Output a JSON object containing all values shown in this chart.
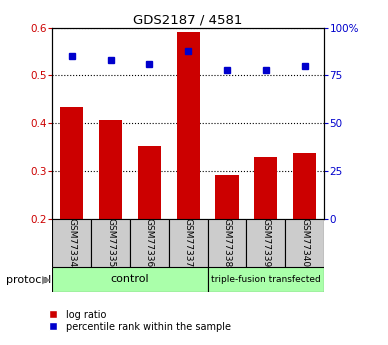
{
  "title": "GDS2187 / 4581",
  "samples": [
    "GSM77334",
    "GSM77335",
    "GSM77336",
    "GSM77337",
    "GSM77338",
    "GSM77339",
    "GSM77340"
  ],
  "log_ratio": [
    0.435,
    0.407,
    0.352,
    0.59,
    0.292,
    0.33,
    0.338
  ],
  "percentile_rank": [
    85,
    83,
    81,
    88,
    78,
    78,
    80
  ],
  "bar_color": "#cc0000",
  "dot_color": "#0000cc",
  "ylim_left": [
    0.2,
    0.6
  ],
  "ylim_right": [
    0,
    100
  ],
  "yticks_left": [
    0.2,
    0.3,
    0.4,
    0.5,
    0.6
  ],
  "yticks_right": [
    0,
    25,
    50,
    75,
    100
  ],
  "ytick_labels_right": [
    "0",
    "25",
    "50",
    "75",
    "100%"
  ],
  "control_samples": 4,
  "triple_fusion_samples": 3,
  "protocol_label": "protocol",
  "control_label": "control",
  "triple_label": "triple-fusion transfected",
  "legend_items": [
    {
      "label": "log ratio",
      "color": "#cc0000"
    },
    {
      "label": "percentile rank within the sample",
      "color": "#0000cc"
    }
  ],
  "sample_box_color": "#cccccc",
  "group_box_color": "#aaffaa",
  "bar_baseline": 0.2
}
